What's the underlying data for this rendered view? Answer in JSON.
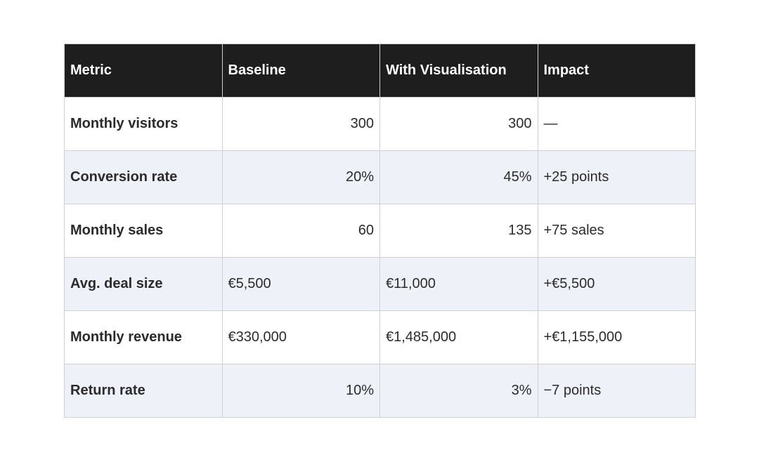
{
  "table": {
    "headers": [
      "Metric",
      "Baseline",
      "With Visualisation",
      "Impact"
    ],
    "rows": [
      {
        "metric": "Monthly visitors",
        "baseline": "300",
        "with_visualisation": "300",
        "impact": "—"
      },
      {
        "metric": "Conversion rate",
        "baseline": "20%",
        "with_visualisation": "45%",
        "impact": "+25 points"
      },
      {
        "metric": "Monthly sales",
        "baseline": "60",
        "with_visualisation": "135",
        "impact": "+75 sales"
      },
      {
        "metric": "Avg. deal size",
        "baseline": "€5,500",
        "with_visualisation": "€11,000",
        "impact": "+€5,500"
      },
      {
        "metric": "Monthly revenue",
        "baseline": "€330,000",
        "with_visualisation": "€1,485,000",
        "impact": "+€1,155,000"
      },
      {
        "metric": "Return rate",
        "baseline": "10%",
        "with_visualisation": "3%",
        "impact": "−7 points"
      }
    ]
  }
}
